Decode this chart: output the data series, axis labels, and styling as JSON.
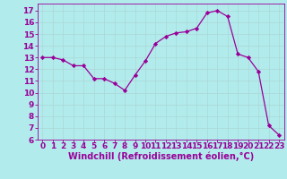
{
  "x": [
    0,
    1,
    2,
    3,
    4,
    5,
    6,
    7,
    8,
    9,
    10,
    11,
    12,
    13,
    14,
    15,
    16,
    17,
    18,
    19,
    20,
    21,
    22,
    23
  ],
  "y": [
    13,
    13,
    12.8,
    12.3,
    12.3,
    11.2,
    11.2,
    10.8,
    10.2,
    11.5,
    12.7,
    14.2,
    14.8,
    15.1,
    15.2,
    15.5,
    16.8,
    17.0,
    16.5,
    13.3,
    13.0,
    11.8,
    7.2,
    6.4
  ],
  "line_color": "#990099",
  "marker": "D",
  "marker_size": 2.2,
  "bg_color": "#b2ebeb",
  "grid_color": "#c8e8e8",
  "xlabel": "Windchill (Refroidissement éolien,°C)",
  "xlim": [
    -0.5,
    23.5
  ],
  "ylim": [
    6,
    17.6
  ],
  "yticks": [
    6,
    7,
    8,
    9,
    10,
    11,
    12,
    13,
    14,
    15,
    16,
    17
  ],
  "xticks": [
    0,
    1,
    2,
    3,
    4,
    5,
    6,
    7,
    8,
    9,
    10,
    11,
    12,
    13,
    14,
    15,
    16,
    17,
    18,
    19,
    20,
    21,
    22,
    23
  ],
  "axis_label_color": "#990099",
  "tick_color": "#990099",
  "font_size_xlabel": 7.0,
  "font_size_ticks": 6.5
}
